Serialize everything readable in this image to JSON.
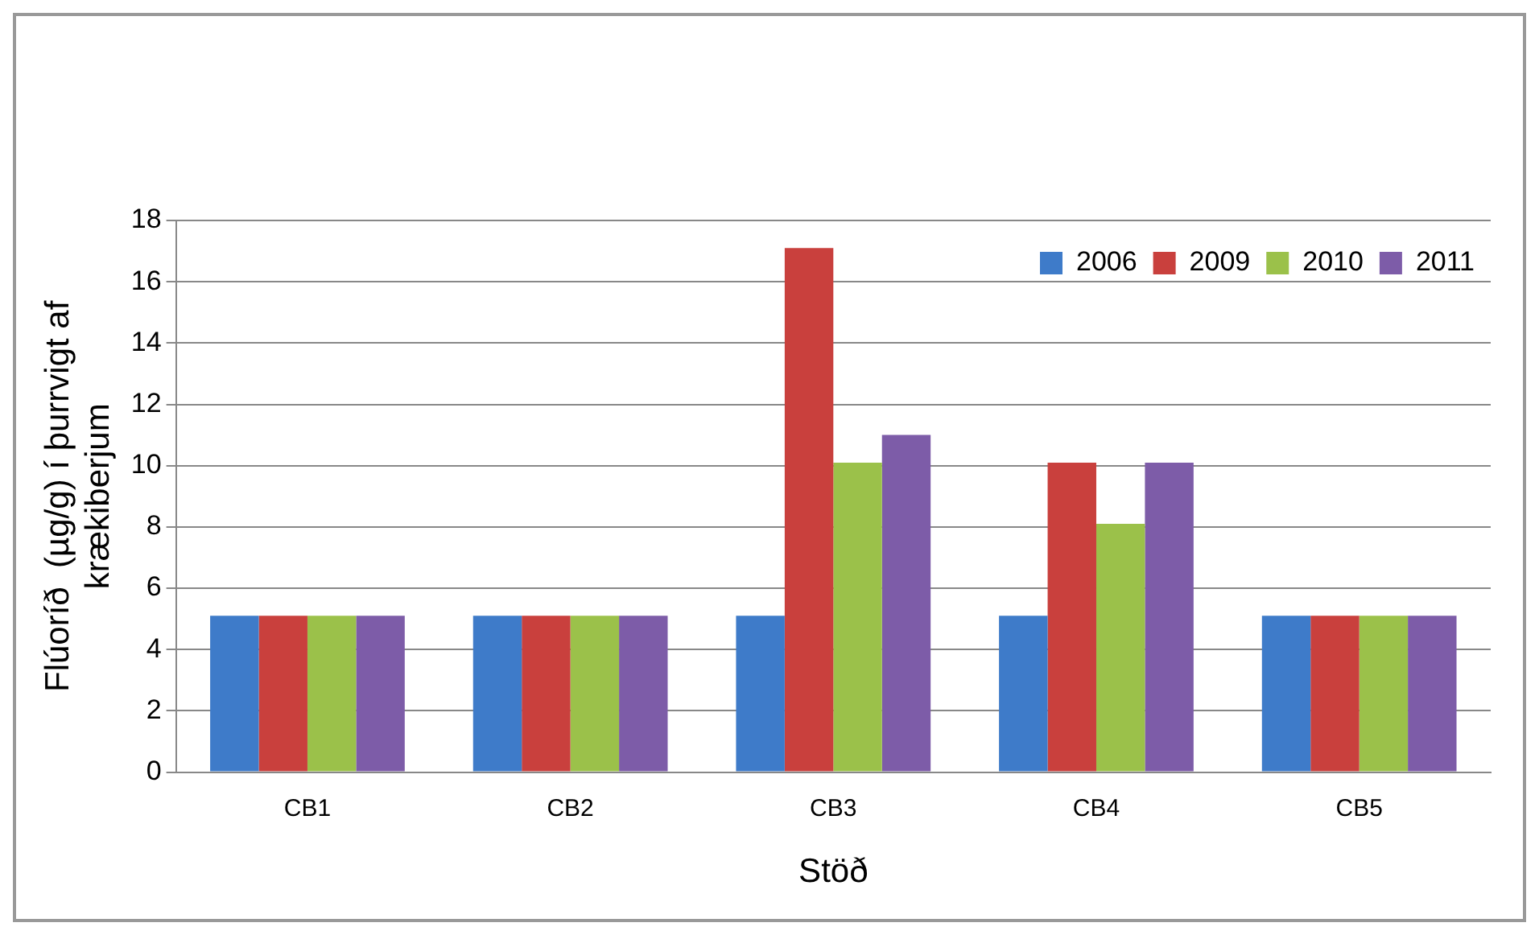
{
  "chart_data": {
    "type": "bar",
    "categories": [
      "CB1",
      "CB2",
      "CB3",
      "CB4",
      "CB5"
    ],
    "series": [
      {
        "name": "2006",
        "color": "#3e7bc9",
        "values": [
          5.1,
          5.1,
          5.1,
          5.1,
          5.1
        ]
      },
      {
        "name": "2009",
        "color": "#c9403d",
        "values": [
          5.1,
          5.1,
          17.1,
          10.1,
          5.1
        ]
      },
      {
        "name": "2010",
        "color": "#9bc14a",
        "values": [
          5.1,
          5.1,
          10.1,
          8.1,
          5.1
        ]
      },
      {
        "name": "2011",
        "color": "#7d5ca8",
        "values": [
          5.1,
          5.1,
          11,
          10.1,
          5.1
        ]
      }
    ],
    "ylim": [
      0,
      18
    ],
    "yticks": [
      0,
      2,
      4,
      6,
      8,
      10,
      12,
      14,
      16,
      18
    ],
    "grid": "y",
    "legend": "top right",
    "xlabel": "Stöð",
    "ylabel": "Flúoríð  (µg/g) í þurrvigt af krækiberjum"
  }
}
